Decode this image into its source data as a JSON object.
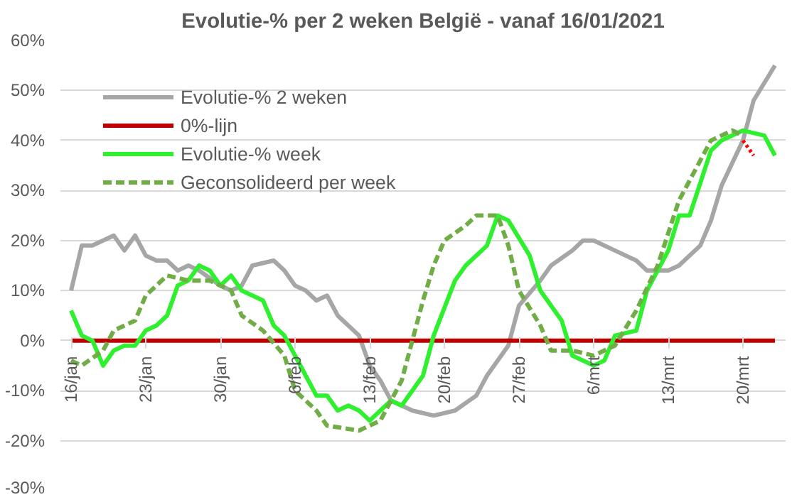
{
  "chart_data": {
    "type": "line",
    "title": "Evolutie-% per 2 weken België - vanaf 16/01/2021",
    "xlim": [
      "2021-01-15",
      "2021-03-24"
    ],
    "xticks": [
      {
        "value": "2021-01-16",
        "label": "16/jan"
      },
      {
        "value": "2021-01-23",
        "label": "23/jan"
      },
      {
        "value": "2021-01-30",
        "label": "30/jan"
      },
      {
        "value": "2021-02-06",
        "label": "6/feb"
      },
      {
        "value": "2021-02-13",
        "label": "13/feb"
      },
      {
        "value": "2021-02-20",
        "label": "20/feb"
      },
      {
        "value": "2021-02-27",
        "label": "27/feb"
      },
      {
        "value": "2021-03-06",
        "label": "6/mrt"
      },
      {
        "value": "2021-03-13",
        "label": "13/mrt"
      },
      {
        "value": "2021-03-20",
        "label": "20/mrt"
      }
    ],
    "ylim": [
      -30,
      60
    ],
    "yticks": [
      {
        "value": -30,
        "label": "-30%"
      },
      {
        "value": -20,
        "label": "-20%"
      },
      {
        "value": -10,
        "label": "-10%"
      },
      {
        "value": 0,
        "label": "0%"
      },
      {
        "value": 10,
        "label": "10%"
      },
      {
        "value": 20,
        "label": "20%"
      },
      {
        "value": 30,
        "label": "30%"
      },
      {
        "value": 40,
        "label": "40%"
      },
      {
        "value": 50,
        "label": "50%"
      },
      {
        "value": 60,
        "label": "60%"
      }
    ],
    "grid": "y",
    "legend": "top left",
    "marker": "none",
    "series": [
      {
        "name": "Evolutie-% 2 weken",
        "color": "#a6a6a6",
        "line_style": "solid",
        "x": [
          "2021-01-16",
          "2021-01-17",
          "2021-01-18",
          "2021-01-20",
          "2021-01-21",
          "2021-01-22",
          "2021-01-23",
          "2021-01-24",
          "2021-01-25",
          "2021-01-26",
          "2021-01-27",
          "2021-01-28",
          "2021-01-30",
          "2021-01-31",
          "2021-02-01",
          "2021-02-02",
          "2021-02-04",
          "2021-02-05",
          "2021-02-06",
          "2021-02-07",
          "2021-02-08",
          "2021-02-09",
          "2021-02-10",
          "2021-02-12",
          "2021-02-13",
          "2021-02-14",
          "2021-02-15",
          "2021-02-17",
          "2021-02-19",
          "2021-02-21",
          "2021-02-23",
          "2021-02-24",
          "2021-02-26",
          "2021-02-27",
          "2021-03-01",
          "2021-03-02",
          "2021-03-04",
          "2021-03-05",
          "2021-03-06",
          "2021-03-08",
          "2021-03-10",
          "2021-03-11",
          "2021-03-13",
          "2021-03-14",
          "2021-03-16",
          "2021-03-17",
          "2021-03-18",
          "2021-03-20",
          "2021-03-21",
          "2021-03-23"
        ],
        "values": [
          10,
          19,
          19,
          21,
          18,
          21,
          17,
          16,
          16,
          14,
          15,
          14,
          11,
          10,
          11,
          15,
          16,
          14,
          11,
          10,
          8,
          9,
          5,
          1,
          -5,
          -8,
          -12,
          -14,
          -15,
          -14,
          -11,
          -7,
          -1,
          7,
          12,
          15,
          18,
          20,
          20,
          18,
          16,
          14,
          14,
          15,
          19,
          24,
          31,
          40,
          48,
          55
        ]
      },
      {
        "name": "0%-lijn",
        "color": "#c00000",
        "line_style": "solid",
        "x": [
          "2021-01-16",
          "2021-03-23"
        ],
        "values": [
          0,
          0
        ]
      },
      {
        "name": "Evolutie-% week",
        "color": "#2ef02e",
        "line_style": "solid",
        "x": [
          "2021-01-16",
          "2021-01-17",
          "2021-01-18",
          "2021-01-19",
          "2021-01-20",
          "2021-01-21",
          "2021-01-22",
          "2021-01-23",
          "2021-01-24",
          "2021-01-25",
          "2021-01-26",
          "2021-01-27",
          "2021-01-28",
          "2021-01-29",
          "2021-01-30",
          "2021-01-31",
          "2021-02-01",
          "2021-02-03",
          "2021-02-04",
          "2021-02-05",
          "2021-02-06",
          "2021-02-07",
          "2021-02-08",
          "2021-02-09",
          "2021-02-10",
          "2021-02-11",
          "2021-02-12",
          "2021-02-13",
          "2021-02-14",
          "2021-02-15",
          "2021-02-16",
          "2021-02-18",
          "2021-02-19",
          "2021-02-21",
          "2021-02-22",
          "2021-02-24",
          "2021-02-25",
          "2021-02-26",
          "2021-02-28",
          "2021-03-01",
          "2021-03-03",
          "2021-03-04",
          "2021-03-06",
          "2021-03-07",
          "2021-03-08",
          "2021-03-10",
          "2021-03-11",
          "2021-03-13",
          "2021-03-14",
          "2021-03-15",
          "2021-03-17",
          "2021-03-18",
          "2021-03-20",
          "2021-03-22",
          "2021-03-23"
        ],
        "values": [
          6,
          1,
          0,
          -5,
          -2,
          -1,
          -1,
          2,
          3,
          5,
          11,
          12,
          15,
          14,
          11,
          13,
          10,
          8,
          3,
          1,
          -3,
          -7,
          -11,
          -11,
          -14,
          -13,
          -14,
          -16,
          -14,
          -12,
          -13,
          -7,
          1,
          12,
          15,
          19,
          25,
          24,
          17,
          10,
          4,
          -3,
          -5,
          -4,
          1,
          2,
          10,
          18,
          25,
          25,
          38,
          40,
          42,
          41,
          37
        ]
      },
      {
        "name": "Geconsolideerd per week",
        "color": "#70ad47",
        "line_style": "dashed",
        "x": [
          "2021-01-16",
          "2021-01-17",
          "2021-01-19",
          "2021-01-20",
          "2021-01-22",
          "2021-01-23",
          "2021-01-25",
          "2021-01-27",
          "2021-01-29",
          "2021-01-31",
          "2021-02-01",
          "2021-02-03",
          "2021-02-05",
          "2021-02-06",
          "2021-02-08",
          "2021-02-09",
          "2021-02-12",
          "2021-02-14",
          "2021-02-16",
          "2021-02-17",
          "2021-02-18",
          "2021-02-19",
          "2021-02-20",
          "2021-02-22",
          "2021-02-23",
          "2021-02-25",
          "2021-02-26",
          "2021-02-27",
          "2021-03-01",
          "2021-03-02",
          "2021-03-04",
          "2021-03-06",
          "2021-03-08",
          "2021-03-10",
          "2021-03-12",
          "2021-03-14",
          "2021-03-16",
          "2021-03-17",
          "2021-03-19",
          "2021-03-20"
        ],
        "values": [
          -4,
          -5,
          -2,
          2,
          4,
          9,
          13,
          12,
          12,
          10,
          5,
          2,
          -3,
          -10,
          -14,
          -17,
          -18,
          -16,
          -8,
          0,
          8,
          15,
          20,
          23,
          25,
          25,
          19,
          10,
          3,
          -2,
          -2,
          -3,
          -1,
          6,
          15,
          28,
          36,
          40,
          42,
          41
        ]
      },
      {
        "color": "#ff0000",
        "line_style": "dotted",
        "x": [
          "2021-03-20",
          "2021-03-21"
        ],
        "values": [
          40,
          37
        ]
      }
    ]
  }
}
